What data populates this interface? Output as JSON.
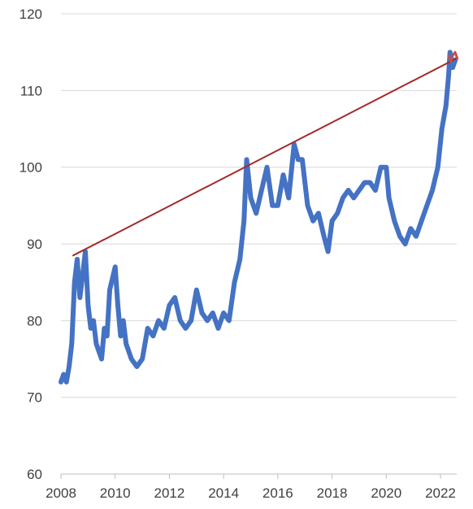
{
  "chart_data": {
    "type": "line",
    "title": "",
    "xlabel": "",
    "ylabel": "",
    "xlim": [
      2008,
      2022.6
    ],
    "ylim": [
      60,
      120
    ],
    "x_ticks": [
      "2008",
      "2010",
      "2012",
      "2014",
      "2016",
      "2018",
      "2020",
      "2022"
    ],
    "y_ticks": [
      "60",
      "70",
      "80",
      "90",
      "100",
      "110",
      "120"
    ],
    "grid": "horizontal",
    "legend": "none",
    "series": [
      {
        "color": "#4472c4",
        "x": [
          2008.0,
          2008.1,
          2008.2,
          2008.3,
          2008.4,
          2008.5,
          2008.6,
          2008.7,
          2008.8,
          2008.9,
          2009.0,
          2009.1,
          2009.2,
          2009.3,
          2009.4,
          2009.5,
          2009.6,
          2009.7,
          2009.8,
          2010.0,
          2010.1,
          2010.2,
          2010.3,
          2010.4,
          2010.6,
          2010.8,
          2011.0,
          2011.1,
          2011.2,
          2011.4,
          2011.6,
          2011.8,
          2012.0,
          2012.2,
          2012.4,
          2012.6,
          2012.8,
          2013.0,
          2013.2,
          2013.4,
          2013.6,
          2013.8,
          2014.0,
          2014.2,
          2014.4,
          2014.6,
          2014.75,
          2014.85,
          2015.0,
          2015.2,
          2015.4,
          2015.6,
          2015.8,
          2016.0,
          2016.2,
          2016.4,
          2016.6,
          2016.75,
          2016.9,
          2017.1,
          2017.3,
          2017.5,
          2017.7,
          2017.85,
          2018.0,
          2018.2,
          2018.4,
          2018.6,
          2018.8,
          2019.0,
          2019.2,
          2019.4,
          2019.6,
          2019.8,
          2020.0,
          2020.1,
          2020.3,
          2020.5,
          2020.7,
          2020.9,
          2021.1,
          2021.3,
          2021.5,
          2021.7,
          2021.9,
          2022.05,
          2022.2,
          2022.3,
          2022.35,
          2022.45,
          2022.55
        ],
        "values": [
          72,
          73,
          72,
          74,
          77,
          85,
          88,
          83,
          86,
          89,
          82,
          79,
          80,
          77,
          76,
          75,
          79,
          78,
          84,
          87,
          82,
          78,
          80,
          77,
          75,
          74,
          75,
          77,
          79,
          78,
          80,
          79,
          82,
          83,
          80,
          79,
          80,
          84,
          81,
          80,
          81,
          79,
          81,
          80,
          85,
          88,
          93,
          101,
          96,
          94,
          97,
          100,
          95,
          95,
          99,
          96,
          103,
          101,
          101,
          95,
          93,
          94,
          91,
          89,
          93,
          94,
          96,
          97,
          96,
          97,
          98,
          98,
          97,
          100,
          100,
          96,
          93,
          91,
          90,
          92,
          91,
          93,
          95,
          97,
          100,
          105,
          108,
          112,
          115,
          113,
          114
        ]
      },
      {
        "color": "#a52a2a",
        "x": [
          2008.45,
          2022.6
        ],
        "values": [
          88.5,
          114.2
        ]
      },
      {
        "color": "#c0504d",
        "x": [
          2022.3,
          2022.38,
          2022.46,
          2022.54,
          2022.62
        ],
        "values": [
          114.5,
          113.8,
          114.6,
          115.0,
          114.2
        ]
      }
    ]
  }
}
